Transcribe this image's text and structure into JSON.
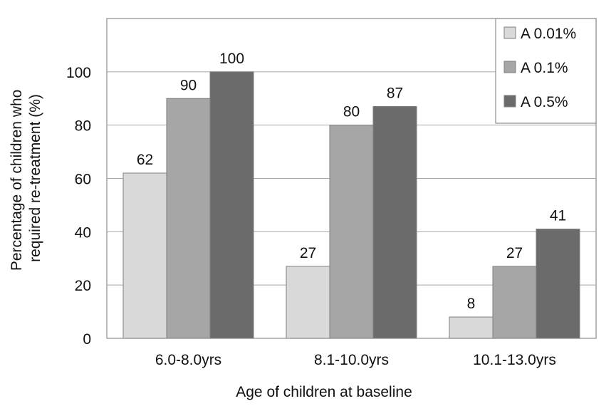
{
  "chart_data": {
    "type": "bar",
    "title": "",
    "xlabel": "Age of children at baseline",
    "ylabel_lines": [
      "Percentage of children who",
      "required re-treatment (%)"
    ],
    "categories": [
      "6.0-8.0yrs",
      "8.1-10.0yrs",
      "10.1-13.0yrs"
    ],
    "series": [
      {
        "name": "A 0.01%",
        "values": [
          62,
          27,
          8
        ],
        "color": "#d9d9d9"
      },
      {
        "name": "A 0.1%",
        "values": [
          90,
          80,
          27
        ],
        "color": "#a6a6a6"
      },
      {
        "name": "A 0.5%",
        "values": [
          100,
          87,
          41
        ],
        "color": "#6b6b6b"
      }
    ],
    "ylim": [
      0,
      120
    ],
    "yticks": [
      0,
      20,
      40,
      60,
      80,
      100
    ],
    "grid": true,
    "legend_position": "top-right"
  }
}
